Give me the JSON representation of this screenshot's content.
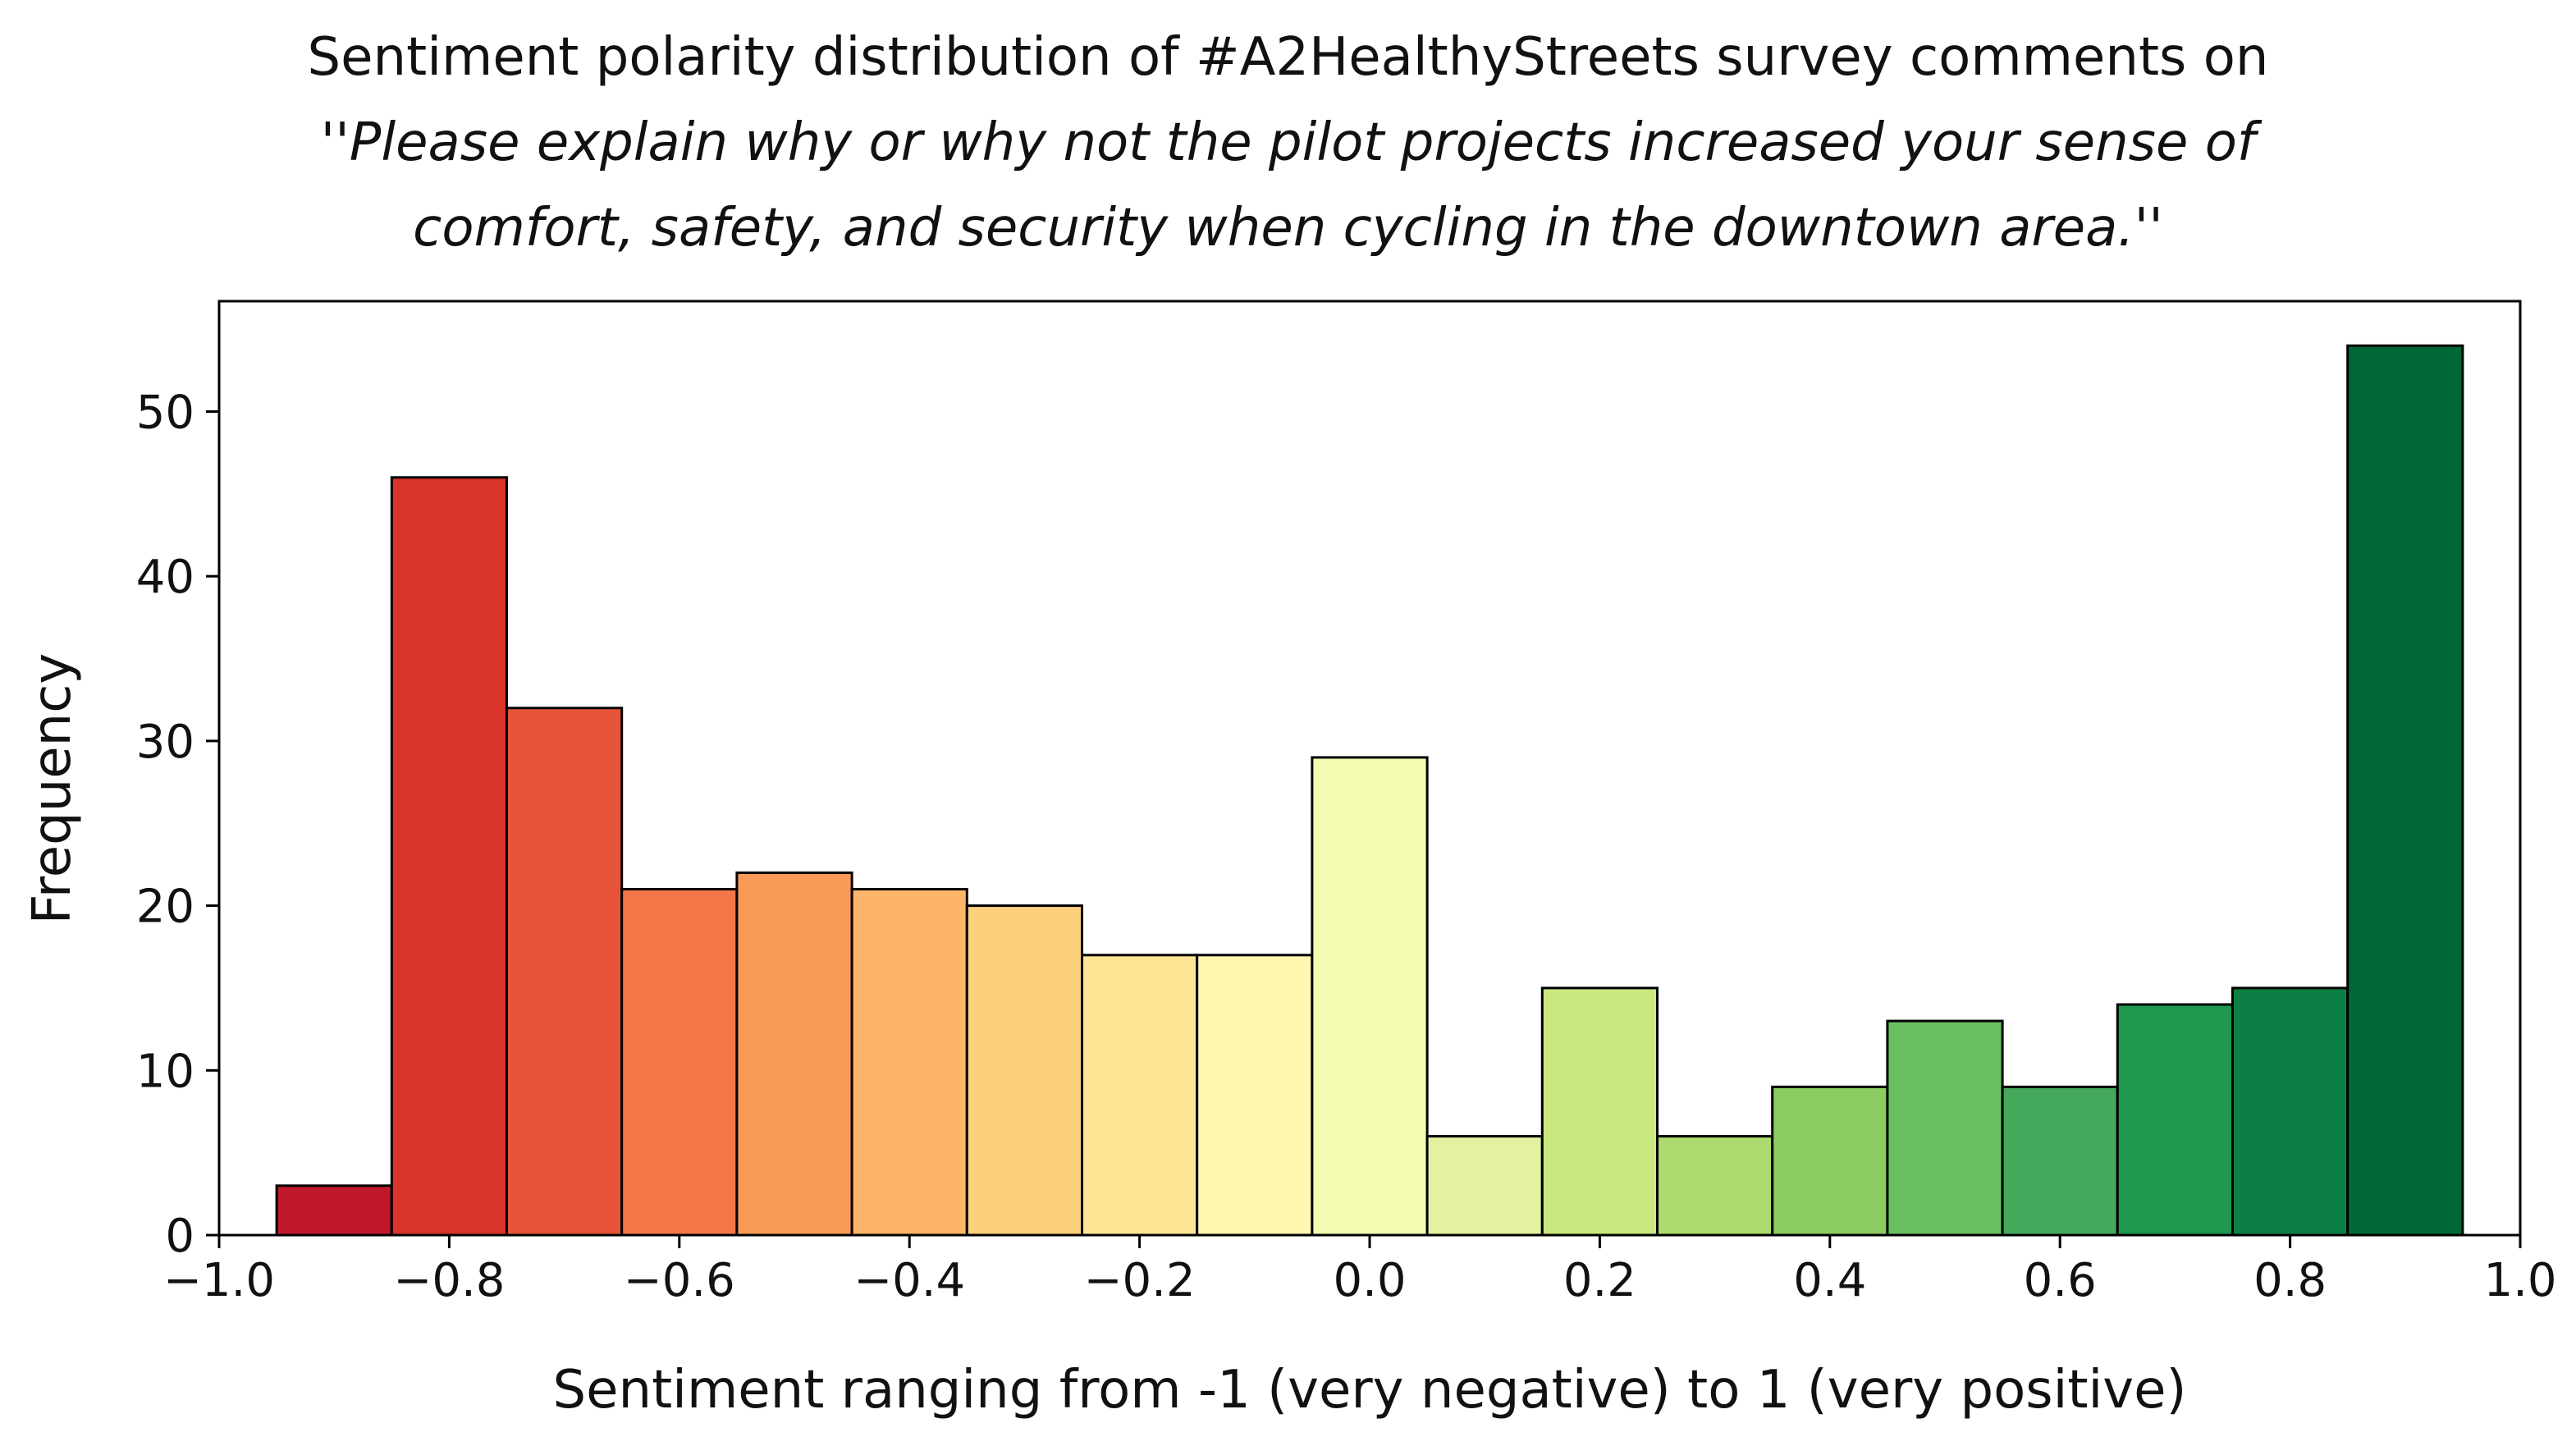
{
  "chart_data": {
    "type": "bar",
    "title_line1": "Sentiment polarity distribution of #A2HealthyStreets survey comments on",
    "title_line2": "''Please explain why or why not the pilot projects increased your sense of",
    "title_line3": "comfort,  safety,  and security when cycling in the downtown area.''",
    "xlabel": "Sentiment ranging from -1 (very negative) to 1 (very positive)",
    "ylabel": "Frequency",
    "xlim": [
      -1.0,
      1.0
    ],
    "ylim": [
      0,
      56.7
    ],
    "x_ticks": [
      -1.0,
      -0.8,
      -0.6,
      -0.4,
      -0.2,
      0.0,
      0.2,
      0.4,
      0.6,
      0.8,
      1.0
    ],
    "x_tick_labels": [
      "−1.0",
      "−0.8",
      "−0.6",
      "−0.4",
      "−0.2",
      "0.0",
      "0.2",
      "0.4",
      "0.6",
      "0.8",
      "1.0"
    ],
    "y_ticks": [
      0,
      10,
      20,
      30,
      40,
      50
    ],
    "y_tick_labels": [
      "0",
      "10",
      "20",
      "30",
      "40",
      "50"
    ],
    "grid": false,
    "bin_width": 0.1,
    "bin_centers": [
      -0.9,
      -0.8,
      -0.7,
      -0.6,
      -0.5,
      -0.4,
      -0.3,
      -0.2,
      -0.1,
      0.0,
      0.1,
      0.2,
      0.3,
      0.4,
      0.5,
      0.6,
      0.7,
      0.8,
      0.9
    ],
    "values": [
      3,
      46,
      32,
      21,
      22,
      21,
      20,
      17,
      17,
      29,
      6,
      15,
      6,
      9,
      13,
      9,
      14,
      15,
      54
    ],
    "colors": [
      "#c0192a",
      "#d9332a",
      "#e75337",
      "#f47748",
      "#f99a58",
      "#fcb56a",
      "#fdd07d",
      "#fee495",
      "#fff6b0",
      "#f5fbb2",
      "#e2f2a0",
      "#c9e880",
      "#addb6d",
      "#8dcc63",
      "#6bbf63",
      "#45a95b",
      "#1e974f",
      "#0c8044",
      "#006837"
    ]
  }
}
